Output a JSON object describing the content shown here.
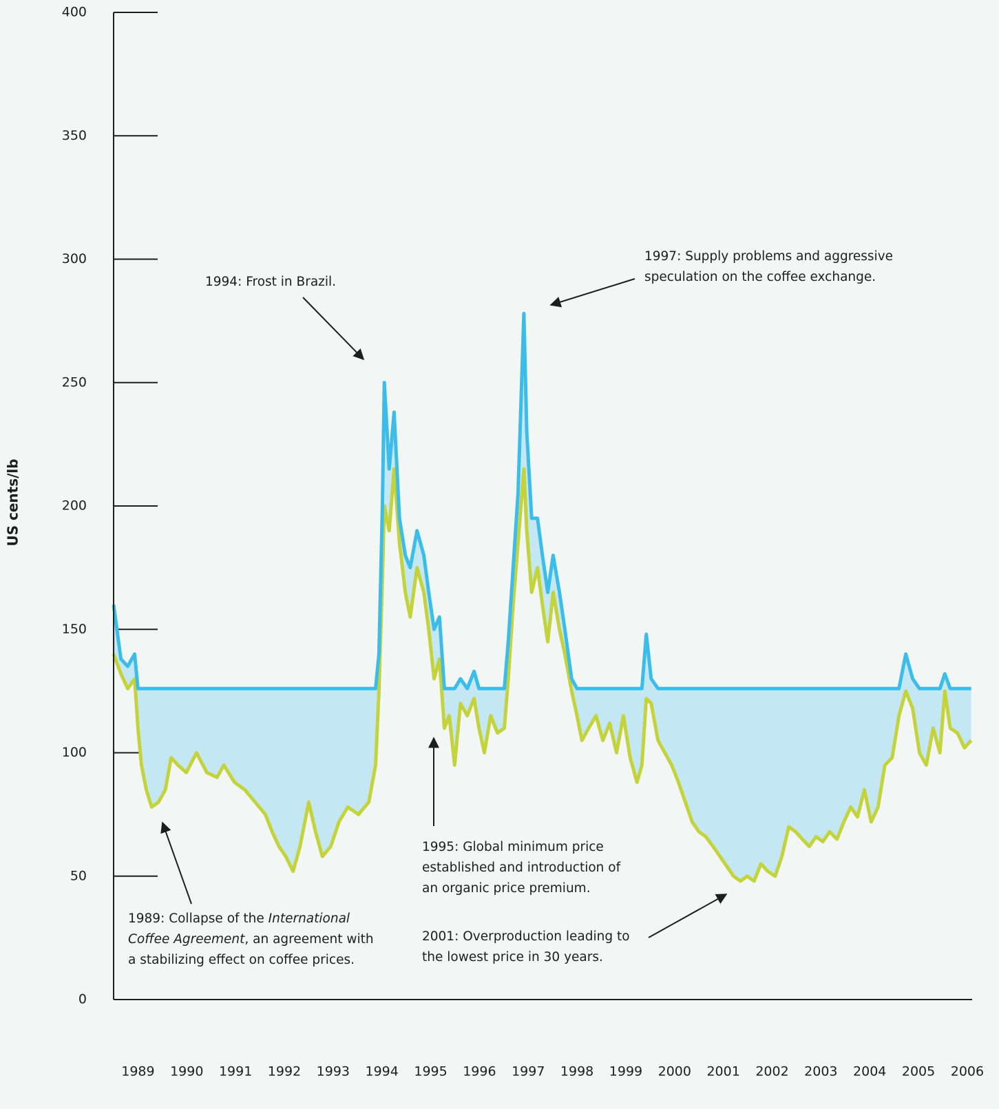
{
  "chart_data": {
    "type": "line",
    "y_label": "US cents/lb",
    "x": [
      1989.0,
      1989.15,
      1989.29,
      1989.43,
      1989.5,
      1989.57,
      1989.67,
      1989.78,
      1989.92,
      1990.06,
      1990.18,
      1990.32,
      1990.49,
      1990.7,
      1990.91,
      1991.12,
      1991.26,
      1991.48,
      1991.69,
      1991.9,
      1992.11,
      1992.25,
      1992.39,
      1992.53,
      1992.68,
      1992.82,
      1993.0,
      1993.14,
      1993.28,
      1993.45,
      1993.62,
      1993.8,
      1994.02,
      1994.23,
      1994.37,
      1994.44,
      1994.51,
      1994.55,
      1994.65,
      1994.75,
      1994.86,
      1994.98,
      1995.08,
      1995.22,
      1995.36,
      1995.46,
      1995.57,
      1995.68,
      1995.78,
      1995.88,
      1995.99,
      1996.11,
      1996.25,
      1996.39,
      1996.49,
      1996.6,
      1996.73,
      1996.87,
      1997.01,
      1997.09,
      1997.19,
      1997.29,
      1997.41,
      1997.47,
      1997.57,
      1997.69,
      1997.79,
      1997.9,
      1998.01,
      1998.14,
      1998.25,
      1998.39,
      1998.5,
      1998.6,
      1998.74,
      1998.89,
      1999.03,
      1999.17,
      1999.31,
      1999.45,
      1999.59,
      1999.73,
      1999.83,
      1999.92,
      2000.02,
      2000.16,
      2000.3,
      2000.44,
      2000.58,
      2000.72,
      2000.86,
      2001.0,
      2001.14,
      2001.29,
      2001.43,
      2001.57,
      2001.71,
      2001.85,
      2001.99,
      2002.13,
      2002.27,
      2002.41,
      2002.56,
      2002.7,
      2002.84,
      2002.98,
      2003.12,
      2003.26,
      2003.4,
      2003.54,
      2003.68,
      2003.83,
      2003.97,
      2004.11,
      2004.25,
      2004.39,
      2004.53,
      2004.67,
      2004.81,
      2004.96,
      2005.1,
      2005.24,
      2005.38,
      2005.52,
      2005.66,
      2005.8,
      2005.94,
      2006.04,
      2006.15,
      2006.3,
      2006.44,
      2006.58
    ],
    "series": [
      {
        "color": "#c4d33b",
        "values": [
          140,
          132,
          126,
          130,
          110,
          95,
          85,
          78,
          80,
          85,
          98,
          95,
          92,
          100,
          92,
          90,
          95,
          88,
          85,
          80,
          75,
          68,
          62,
          58,
          52,
          62,
          80,
          68,
          58,
          62,
          72,
          78,
          75,
          80,
          95,
          125,
          170,
          200,
          190,
          215,
          185,
          165,
          155,
          175,
          165,
          150,
          130,
          138,
          110,
          115,
          95,
          120,
          115,
          122,
          110,
          100,
          115,
          108,
          110,
          130,
          160,
          185,
          215,
          190,
          165,
          175,
          160,
          145,
          165,
          150,
          140,
          125,
          115,
          105,
          110,
          115,
          105,
          112,
          100,
          115,
          98,
          88,
          95,
          122,
          120,
          105,
          100,
          95,
          88,
          80,
          72,
          68,
          66,
          62,
          58,
          54,
          50,
          48,
          50,
          48,
          55,
          52,
          50,
          58,
          70,
          68,
          65,
          62,
          66,
          64,
          68,
          65,
          72,
          78,
          74,
          85,
          72,
          78,
          95,
          98,
          115,
          125,
          118,
          100,
          95,
          110,
          100,
          125,
          110,
          108,
          102,
          105
        ]
      },
      {
        "color": "#3cbde9",
        "values": [
          160,
          138,
          135,
          140,
          126,
          126,
          126,
          126,
          126,
          126,
          126,
          126,
          126,
          126,
          126,
          126,
          126,
          126,
          126,
          126,
          126,
          126,
          126,
          126,
          126,
          126,
          126,
          126,
          126,
          126,
          126,
          126,
          126,
          126,
          126,
          140,
          200,
          250,
          215,
          238,
          195,
          180,
          175,
          190,
          180,
          165,
          150,
          155,
          126,
          126,
          126,
          130,
          126,
          133,
          126,
          126,
          126,
          126,
          126,
          145,
          175,
          205,
          278,
          230,
          195,
          195,
          180,
          165,
          180,
          165,
          150,
          130,
          126,
          126,
          126,
          126,
          126,
          126,
          126,
          126,
          126,
          126,
          126,
          148,
          130,
          126,
          126,
          126,
          126,
          126,
          126,
          126,
          126,
          126,
          126,
          126,
          126,
          126,
          126,
          126,
          126,
          126,
          126,
          126,
          126,
          126,
          126,
          126,
          126,
          126,
          126,
          126,
          126,
          126,
          126,
          126,
          126,
          126,
          126,
          126,
          126,
          140,
          130,
          126,
          126,
          126,
          126,
          132,
          126,
          126,
          126,
          126
        ]
      }
    ],
    "fill_color": "#c3e8f3",
    "xlim": [
      1989,
      2006.6
    ],
    "ylim": [
      0,
      400
    ],
    "yticks": [
      0,
      50,
      100,
      150,
      200,
      250,
      300,
      350,
      400
    ],
    "xticks": [
      {
        "value": 1989.5,
        "label": "1989"
      },
      {
        "value": 1990.5,
        "label": "1990"
      },
      {
        "value": 1991.5,
        "label": "1991"
      },
      {
        "value": 1992.5,
        "label": "1992"
      },
      {
        "value": 1993.5,
        "label": "1993"
      },
      {
        "value": 1994.5,
        "label": "1994"
      },
      {
        "value": 1995.5,
        "label": "1995"
      },
      {
        "value": 1996.5,
        "label": "1996"
      },
      {
        "value": 1997.5,
        "label": "1997"
      },
      {
        "value": 1998.5,
        "label": "1998"
      },
      {
        "value": 1999.5,
        "label": "1999"
      },
      {
        "value": 2000.5,
        "label": "2000"
      },
      {
        "value": 2001.5,
        "label": "2001"
      },
      {
        "value": 2002.5,
        "label": "2002"
      },
      {
        "value": 2003.5,
        "label": "2003"
      },
      {
        "value": 2004.5,
        "label": "2004"
      },
      {
        "value": 2005.5,
        "label": "2005"
      },
      {
        "value": 2006.5,
        "label": "2006"
      }
    ],
    "annotations": [
      {
        "lines": [
          [
            "1989: Collapse of the ",
            "International"
          ],
          [
            "Coffee Agreement",
            ", an agreement with"
          ],
          [
            "a stabilizing effect on coffee prices."
          ]
        ]
      },
      {
        "lines": [
          [
            "1994: Frost in Brazil."
          ]
        ]
      },
      {
        "lines": [
          [
            "1997: Supply problems and aggressive"
          ],
          [
            "speculation on the coffee exchange."
          ]
        ]
      },
      {
        "lines": [
          [
            "1995: Global minimum price"
          ],
          [
            "established and introduction of"
          ],
          [
            "an organic price premium."
          ]
        ]
      },
      {
        "lines": [
          [
            "2001: Overproduction leading to"
          ],
          [
            "the lowest price in 30 years."
          ]
        ]
      }
    ]
  }
}
